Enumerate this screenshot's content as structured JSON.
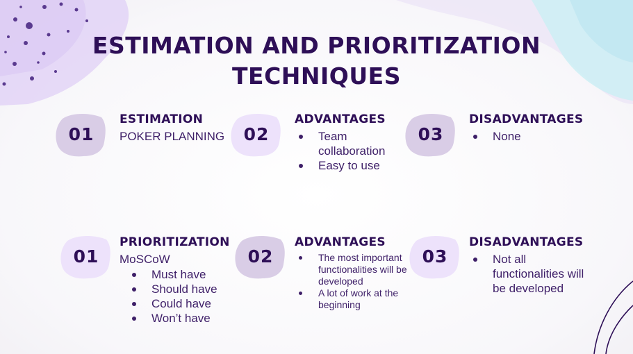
{
  "slide": {
    "title_line1": "ESTIMATION AND PRIORITIZATION",
    "title_line2": "TECHNIQUES"
  },
  "rows": [
    [
      {
        "number": "01",
        "heading": "ESTIMATION",
        "subtitle": "POKER PLANNING",
        "items": []
      },
      {
        "number": "02",
        "heading": "ADVANTAGES",
        "items": [
          "Team collaboration",
          "Easy to use"
        ]
      },
      {
        "number": "03",
        "heading": "DISADVANTAGES",
        "items": [
          "None"
        ]
      }
    ],
    [
      {
        "number": "01",
        "heading": "PRIORITIZATION",
        "subtitle": "MoSCoW",
        "items": [
          "Must have",
          "Should have",
          "Could have",
          "Won’t have"
        ]
      },
      {
        "number": "02",
        "heading": "ADVANTAGES",
        "items": [
          "The most important functionalities will be developed",
          "A lot of work at the beginning"
        ]
      },
      {
        "number": "03",
        "heading": "DISADVANTAGES",
        "items": [
          "Not all functionalities will be developed"
        ]
      }
    ]
  ],
  "colors": {
    "title": "#2e0f57",
    "text": "#3e1f68",
    "badge_dark": "#d9cde6",
    "badge_light": "#ede2fb",
    "accent_purple": "#dccbf5",
    "accent_blue": "#c5ecf4"
  }
}
